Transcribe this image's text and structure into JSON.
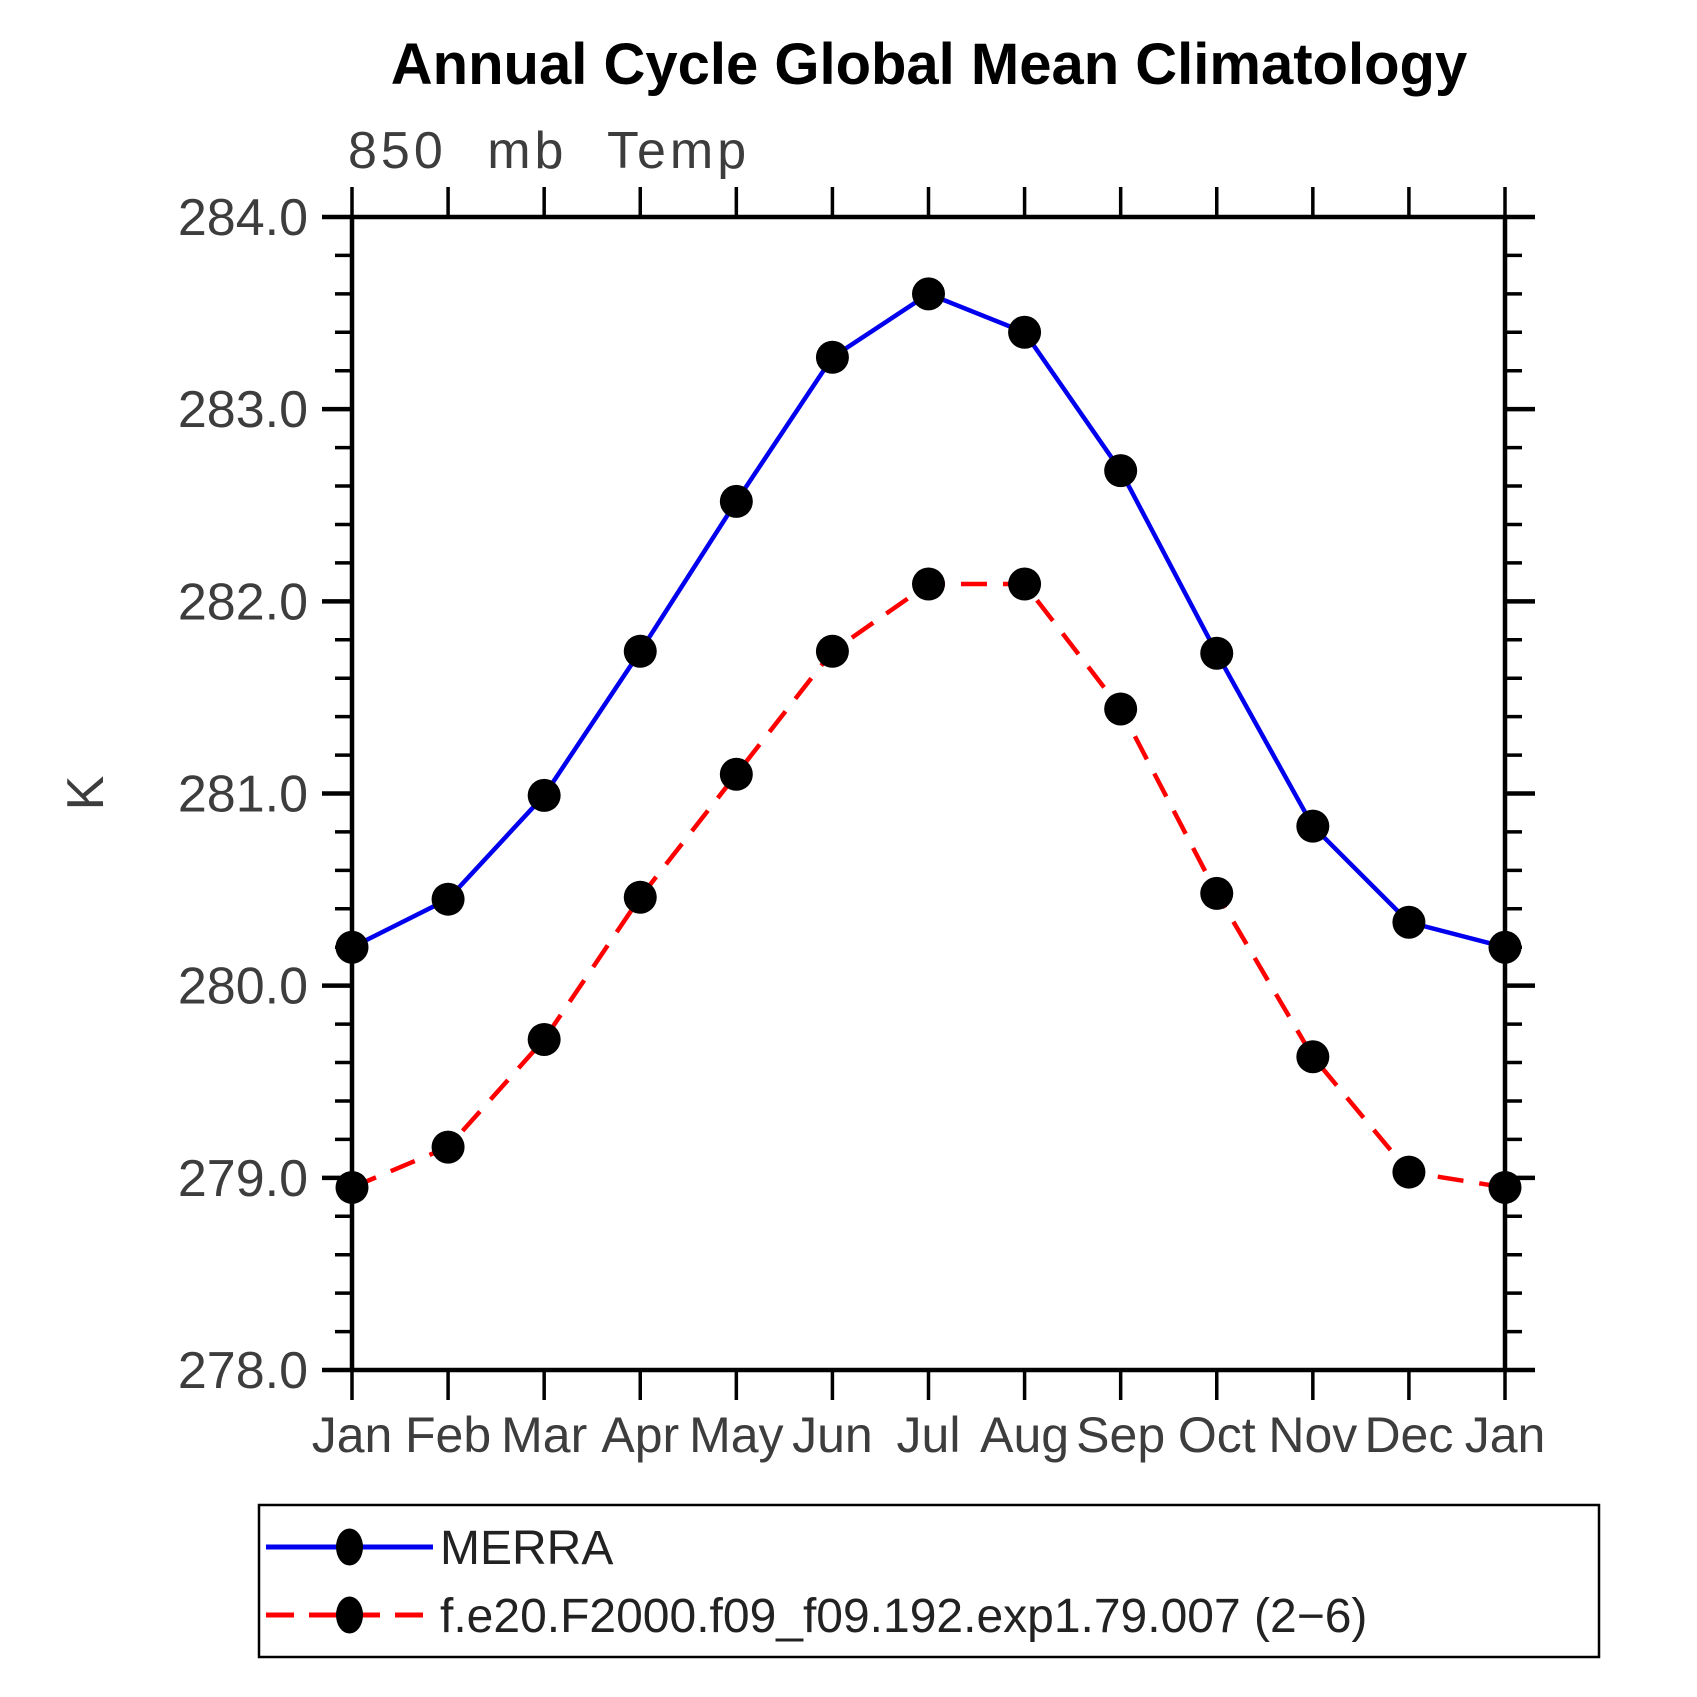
{
  "title": "Annual Cycle Global Mean Climatology",
  "subtitle": "850 mb Temp",
  "ylabel": "K",
  "chart_data": {
    "type": "line",
    "categories": [
      "Jan",
      "Feb",
      "Mar",
      "Apr",
      "May",
      "Jun",
      "Jul",
      "Aug",
      "Sep",
      "Oct",
      "Nov",
      "Dec",
      "Jan"
    ],
    "series": [
      {
        "name": "MERRA",
        "color": "#0000ee",
        "line_style": "solid",
        "marker": "circle",
        "marker_color": "#000000",
        "values": [
          280.2,
          280.45,
          280.99,
          281.74,
          282.52,
          283.27,
          283.6,
          283.4,
          282.68,
          281.73,
          280.83,
          280.33,
          280.2
        ]
      },
      {
        "name": "f.e20.F2000.f09_f09.192.exp1.79.007 (2−6)",
        "color": "#ff0000",
        "line_style": "dashed",
        "marker": "circle",
        "marker_color": "#000000",
        "values": [
          278.95,
          279.16,
          279.72,
          280.46,
          281.1,
          281.74,
          282.09,
          282.09,
          281.44,
          280.48,
          279.63,
          279.03,
          278.95
        ]
      }
    ],
    "xlabel": "",
    "ylim": [
      278.0,
      284.0
    ],
    "ytick_major_step": 1.0,
    "ytick_minor_step": 0.2,
    "ytick_labels": [
      "284.0",
      "283.0",
      "282.0",
      "281.0",
      "280.0",
      "279.0",
      "278.0"
    ],
    "grid": false,
    "legend_position": "bottom",
    "axis_color": "#000000"
  }
}
